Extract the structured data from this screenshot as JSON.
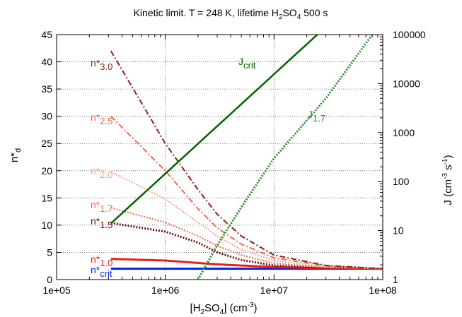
{
  "chart_data": {
    "type": "line",
    "title": {
      "main": "Kinetic limit. T = 248 K, lifetime H",
      "sub": "2",
      "mid": "SO",
      "sub2": "4",
      "tail": " 500 s"
    },
    "xlabel": {
      "pre": "[H",
      "s1": "2",
      "mid": "SO",
      "s2": "4",
      "post": "] (cm",
      "sup": "-3",
      "end": ")"
    },
    "ylabel": {
      "base": "n*",
      "sub": "d"
    },
    "y2label": {
      "pre": "J (cm",
      "sup1": "-3",
      "mid": " s",
      "sup2": "-1",
      "end": ")"
    },
    "x_scale": "log",
    "xlim": [
      100000,
      100000000
    ],
    "x_ticks": [
      {
        "value": 100000,
        "label": "1e+05"
      },
      {
        "value": 1000000,
        "label": "1e+06"
      },
      {
        "value": 10000000,
        "label": "1e+07"
      },
      {
        "value": 100000000,
        "label": "1e+08"
      }
    ],
    "ylim": [
      0,
      45
    ],
    "y_ticks": [
      0,
      5,
      10,
      15,
      20,
      25,
      30,
      35,
      40,
      45
    ],
    "y2_scale": "log",
    "y2lim": [
      1,
      100000
    ],
    "y2_ticks": [
      {
        "value": 1,
        "label": "1"
      },
      {
        "value": 10,
        "label": "10"
      },
      {
        "value": 100,
        "label": "100"
      },
      {
        "value": 1000,
        "label": "1000"
      },
      {
        "value": 10000,
        "label": "10000"
      },
      {
        "value": 100000,
        "label": "100000"
      }
    ],
    "grid": true,
    "series": [
      {
        "base": "n*",
        "sub": "crit",
        "axis": "left",
        "color": "#0022dd",
        "style": "solid",
        "width": 3,
        "x": [
          316000,
          1000000,
          10000000,
          100000000
        ],
        "y": [
          2.0,
          2.0,
          2.0,
          2.0
        ]
      },
      {
        "base": "n*",
        "sub": "1.0",
        "axis": "left",
        "color": "#e8201a",
        "style": "solid",
        "width": 3,
        "x": [
          316000,
          1000000,
          3000000,
          10000000,
          30000000,
          100000000
        ],
        "y": [
          3.8,
          3.5,
          2.8,
          2.3,
          2.05,
          2.0
        ]
      },
      {
        "base": "n*",
        "sub": "1.5",
        "axis": "left",
        "color": "#6e0f0f",
        "style": "dotted",
        "width": 3,
        "x": [
          316000,
          1000000,
          2000000,
          3000000,
          5000000,
          10000000,
          30000000,
          100000000
        ],
        "y": [
          10.4,
          8.8,
          6.8,
          5.0,
          3.6,
          2.6,
          2.1,
          2.0
        ]
      },
      {
        "base": "n*",
        "sub": "1.7",
        "axis": "left",
        "color": "#f06a48",
        "style": "dotted",
        "width": 2,
        "x": [
          316000,
          1000000,
          2000000,
          3000000,
          5000000,
          10000000,
          30000000,
          100000000
        ],
        "y": [
          13.2,
          10.5,
          8.0,
          6.2,
          4.5,
          3.0,
          2.2,
          2.0
        ]
      },
      {
        "base": "n*",
        "sub": "2.0",
        "axis": "left",
        "color": "#f4a090",
        "style": "dotted",
        "width": 2,
        "x": [
          316000,
          1000000,
          2000000,
          3000000,
          5000000,
          10000000,
          30000000,
          100000000
        ],
        "y": [
          19.8,
          14.8,
          10.5,
          8.0,
          5.5,
          3.5,
          2.3,
          2.0
        ]
      },
      {
        "base": "n*",
        "sub": "2.5",
        "axis": "left",
        "color": "#ee6a4e",
        "style": "dashdot",
        "width": 2,
        "x": [
          316000,
          1000000,
          2000000,
          3000000,
          5000000,
          10000000,
          30000000,
          100000000
        ],
        "y": [
          30.0,
          20.0,
          13.0,
          9.5,
          6.5,
          4.0,
          2.5,
          2.0
        ]
      },
      {
        "base": "n*",
        "sub": "3.0",
        "axis": "left",
        "color": "#8b1f1f",
        "style": "dashdot",
        "width": 2,
        "x": [
          316000,
          1000000,
          2000000,
          3000000,
          5000000,
          10000000,
          30000000,
          100000000
        ],
        "y": [
          42.0,
          25.0,
          16.5,
          12.0,
          8.0,
          4.5,
          2.6,
          2.0
        ]
      },
      {
        "base": "J",
        "sub": "crit",
        "axis": "right",
        "color": "#006400",
        "style": "solid",
        "width": 2.5,
        "x": [
          316000,
          25000000
        ],
        "y": [
          14,
          100000
        ]
      },
      {
        "base": "J",
        "sub": "1.7",
        "axis": "right",
        "color": "#2a8a2a",
        "style": "dotted",
        "width": 3,
        "x": [
          2000000,
          3000000,
          5000000,
          10000000,
          30000000,
          80000000
        ],
        "y": [
          1,
          5,
          30,
          300,
          5000,
          100000
        ]
      }
    ]
  }
}
